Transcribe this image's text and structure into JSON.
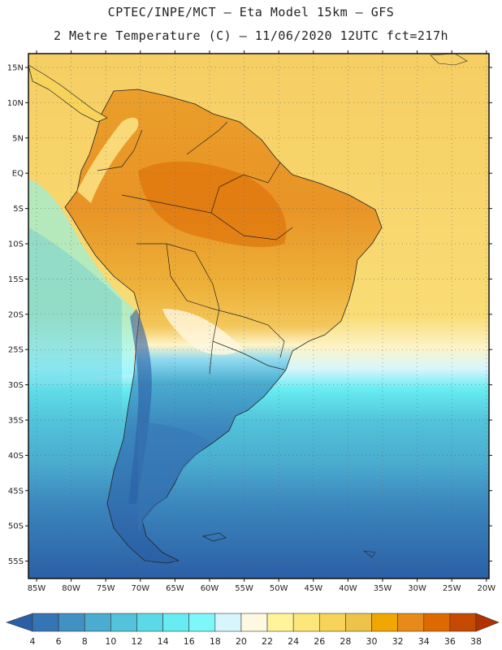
{
  "header": {
    "line1": "CPTEC/INPE/MCT  –  Eta Model 15km – GFS",
    "line2": "2 Metre Temperature (C) – 11/06/2020 12UTC fct=217h"
  },
  "axes": {
    "lat_labels": [
      "15N",
      "10N",
      "5N",
      "EQ",
      "5S",
      "10S",
      "15S",
      "20S",
      "25S",
      "30S",
      "35S",
      "40S",
      "45S",
      "50S",
      "55S"
    ],
    "lon_labels": [
      "85W",
      "80W",
      "75W",
      "70W",
      "65W",
      "60W",
      "55W",
      "50W",
      "45W",
      "40W",
      "35W",
      "30W",
      "25W",
      "20W"
    ]
  },
  "legend": {
    "values": [
      "4",
      "6",
      "8",
      "10",
      "12",
      "14",
      "16",
      "18",
      "20",
      "22",
      "24",
      "26",
      "28",
      "30",
      "32",
      "34",
      "36",
      "38"
    ],
    "colors": [
      "#2b5fa6",
      "#3575b5",
      "#4191c4",
      "#4aaccf",
      "#52c3da",
      "#5cd9e6",
      "#66ecf1",
      "#7ef7fb",
      "#d7f6fc",
      "#fff8e1",
      "#fff49a",
      "#fde77a",
      "#f7d35a",
      "#eec34a",
      "#f0a800",
      "#e88a1a",
      "#dd6a00",
      "#c54a00",
      "#b03200"
    ]
  }
}
